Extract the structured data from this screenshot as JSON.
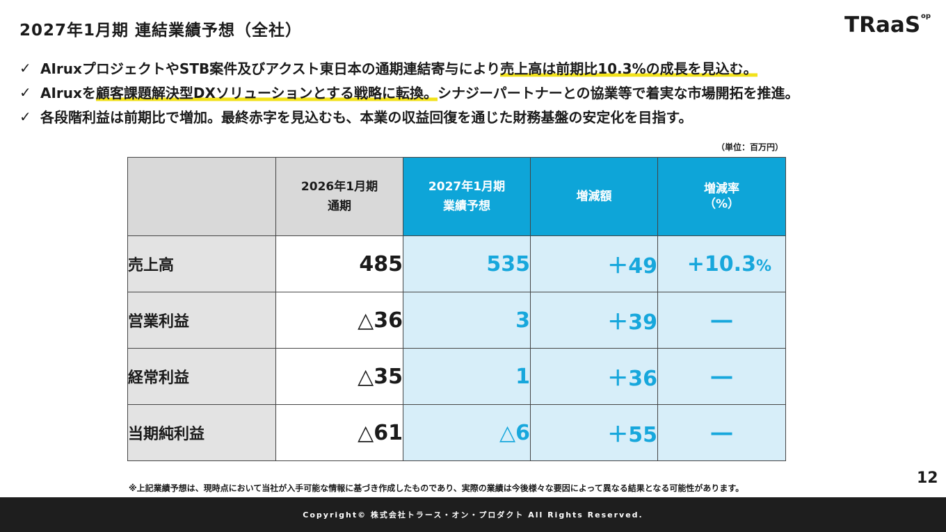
{
  "header": {
    "title": "2027年1月期 連結業績予想（全社）",
    "logo_text": "TRaaS",
    "logo_sup": "op"
  },
  "bullets": [
    {
      "check": "✓",
      "parts": [
        "AIruxプロジェクトやSTB案件及びアクスト東日本の通期連結寄与により",
        "売上高は前期比10.3%の成長を見込む。",
        ""
      ]
    },
    {
      "check": "✓",
      "parts": [
        "AIruxを",
        "顧客課題解決型DXソリューションとする戦略に転換。",
        "シナジーパートナーとの協業等で着実な市場開拓を推進。"
      ]
    },
    {
      "check": "✓",
      "text": "各段階利益は前期比で増加。最終赤字を見込むも、本業の収益回復を通じた財務基盤の安定化を目指す。"
    }
  ],
  "table": {
    "unit": "（単位：百万円）",
    "headers": {
      "prev_line1": "2026年1月期",
      "prev_line2": "通期",
      "fc_line1": "2027年1月期",
      "fc_line2": "業績予想",
      "diff": "増減額",
      "rate_line1": "増減率",
      "rate_line2": "（%）"
    },
    "rows": [
      {
        "label": "売上高",
        "prev": "485",
        "forecast": "535",
        "diff": "＋49",
        "rate": "+10.3",
        "rate_unit": "%"
      },
      {
        "label": "営業利益",
        "prev": "△36",
        "forecast": "3",
        "diff": "＋39",
        "rate": "―",
        "rate_unit": ""
      },
      {
        "label": "経常利益",
        "prev": "△35",
        "forecast": "1",
        "diff": "＋36",
        "rate": "―",
        "rate_unit": ""
      },
      {
        "label": "当期純利益",
        "prev": "△61",
        "forecast": "△6",
        "diff": "＋55",
        "rate": "―",
        "rate_unit": ""
      }
    ]
  },
  "footnote": "※上記業績予想は、現時点において当社が入手可能な情報に基づき作成したものであり、実際の業績は今後様々な要因によって異なる結果となる可能性があります。",
  "page_number": "12",
  "footer": "Copyright© 株式会社トラース・オン・プロダクト All Rights Reserved.",
  "colors": {
    "accent_blue": "#0ea5d8",
    "value_blue": "#17a7dc",
    "light_blue": "#d7eef9",
    "highlight_yellow": "#f2e21b",
    "footer_bg": "#1e1e1e"
  }
}
